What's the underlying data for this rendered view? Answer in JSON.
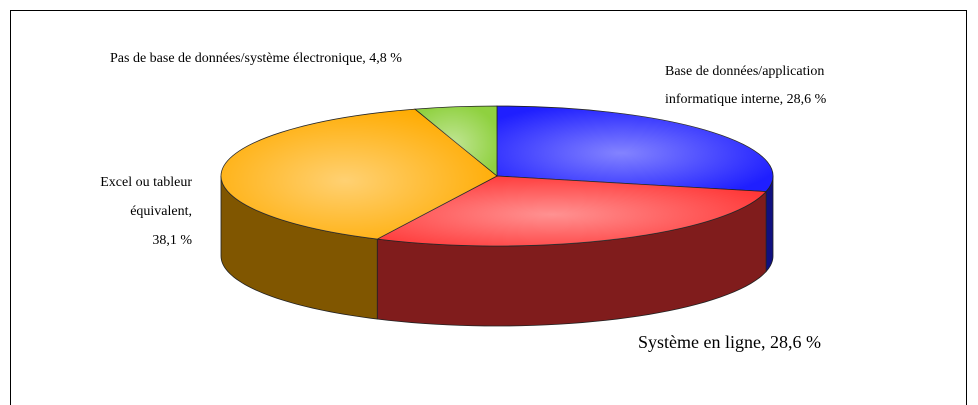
{
  "chart_data": {
    "type": "pie3d",
    "values": [
      28.6,
      28.6,
      38.1,
      4.8
    ],
    "value_labels": [
      [
        "Base de données/application",
        "informatique interne, 28,6 %"
      ],
      [
        "Système en ligne, 28,6 %"
      ],
      [
        "Excel ou tableur",
        "équivalent,",
        "38,1 %"
      ],
      [
        "Pas de base de données/système électronique, 4,8 %"
      ]
    ],
    "colors": [
      "#1f1fff",
      "#ff3838",
      "#ffab00",
      "#8fd13f"
    ]
  }
}
